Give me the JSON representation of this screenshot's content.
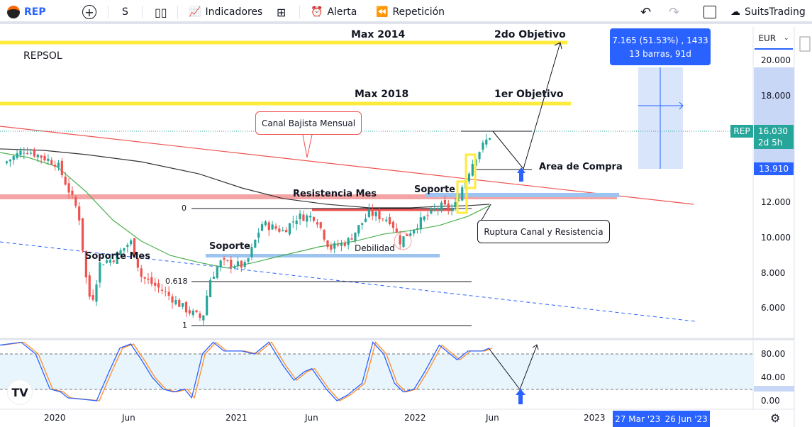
{
  "toolbar": {
    "symbol": "REP",
    "interval": "S",
    "indicators": "Indicadores",
    "alert": "Alerta",
    "replay": "Repetición",
    "account": "SuitsTrading"
  },
  "chart": {
    "title": "REPSOL",
    "currency": "EUR",
    "price_labels": [
      "20.000",
      "18.000",
      "12.000",
      "10.000",
      "8.000",
      "6.000"
    ],
    "osc_labels": [
      "80.00",
      "40.00",
      "0.00"
    ],
    "time_labels": [
      "2020",
      "Jun",
      "2021",
      "Jun",
      "2022",
      "Jun",
      "2023"
    ],
    "range_labels": [
      "27 Mar '23",
      "26 Jun '23"
    ],
    "last_symbol": "REP",
    "last_price": "16.030",
    "countdown": "2d 5h",
    "target_price": "13.910",
    "measure_line1": "7.165 (51.53%) , 1433",
    "measure_line2": "13 barras, 91d",
    "colors": {
      "up": "#26a69a",
      "down": "#ef5350",
      "yellow": "#ffeb3b",
      "accent": "#2962ff"
    }
  },
  "annotations": {
    "max2014": "Max 2014",
    "obj2": "2do Objetivo",
    "max2018": "Max 2018",
    "obj1": "1er Objetivo",
    "canal": "Canal Bajista Mensual",
    "resist": "Resistencia Mes",
    "soporte1": "Soporte",
    "soporte2": "Soporte",
    "soporte_mes": "Soporte Mes",
    "debilidad": "Debilidad",
    "area": "Area de Compra",
    "ruptura": "Ruptura Canal y Resistencia",
    "fib0": "0",
    "fib618": "0.618",
    "fib1": "1"
  },
  "chart_data": {
    "type": "candlestick",
    "price_path": [
      [
        2019.71,
        14.2
      ],
      [
        2019.83,
        15.0
      ],
      [
        2020.01,
        14.2
      ],
      [
        2020.07,
        12.8
      ],
      [
        2020.13,
        11.4
      ],
      [
        2020.17,
        7.8
      ],
      [
        2020.2,
        6.2
      ],
      [
        2020.25,
        8.6
      ],
      [
        2020.32,
        8.8
      ],
      [
        2020.42,
        9.8
      ],
      [
        2020.48,
        7.8
      ],
      [
        2020.6,
        7.0
      ],
      [
        2020.72,
        6.0
      ],
      [
        2020.82,
        5.4
      ],
      [
        2020.86,
        7.6
      ],
      [
        2020.92,
        8.6
      ],
      [
        2021.06,
        8.4
      ],
      [
        2021.15,
        10.8
      ],
      [
        2021.27,
        10.4
      ],
      [
        2021.35,
        11.2
      ],
      [
        2021.45,
        11.2
      ],
      [
        2021.53,
        9.4
      ],
      [
        2021.63,
        9.8
      ],
      [
        2021.75,
        11.4
      ],
      [
        2021.87,
        11.0
      ],
      [
        2021.92,
        9.8
      ],
      [
        2022.02,
        10.8
      ],
      [
        2022.14,
        11.8
      ],
      [
        2022.22,
        11.6
      ],
      [
        2022.28,
        13.2
      ],
      [
        2022.34,
        14.6
      ],
      [
        2022.44,
        16.03
      ]
    ],
    "ma_fast": [
      [
        2019.69,
        14.83
      ],
      [
        2019.85,
        14.54
      ],
      [
        2020.01,
        14.02
      ],
      [
        2020.17,
        12.62
      ],
      [
        2020.32,
        11.01
      ],
      [
        2020.48,
        9.81
      ],
      [
        2020.64,
        9.01
      ],
      [
        2020.8,
        8.61
      ],
      [
        2020.96,
        8.29
      ],
      [
        2021.11,
        8.61
      ],
      [
        2021.27,
        9.01
      ],
      [
        2021.47,
        9.49
      ],
      [
        2021.67,
        9.81
      ],
      [
        2021.83,
        10.21
      ],
      [
        2021.98,
        10.41
      ],
      [
        2022.14,
        10.7
      ],
      [
        2022.3,
        11.22
      ],
      [
        2022.42,
        11.82
      ]
    ],
    "ma_slow": [
      [
        2019.69,
        15.03
      ],
      [
        2019.93,
        14.95
      ],
      [
        2020.17,
        14.71
      ],
      [
        2020.48,
        14.3
      ],
      [
        2020.8,
        13.62
      ],
      [
        2021.04,
        12.82
      ],
      [
        2021.27,
        12.22
      ],
      [
        2021.51,
        11.9
      ],
      [
        2021.75,
        11.7
      ],
      [
        2021.98,
        11.7
      ],
      [
        2022.14,
        11.78
      ],
      [
        2022.3,
        11.82
      ],
      [
        2022.42,
        11.9
      ]
    ],
    "stoch_k": [
      [
        2019.69,
        95
      ],
      [
        2019.81,
        100
      ],
      [
        2019.89,
        80
      ],
      [
        2019.97,
        20
      ],
      [
        2020.03,
        15
      ],
      [
        2020.07,
        5
      ],
      [
        2020.17,
        2
      ],
      [
        2020.23,
        0
      ],
      [
        2020.3,
        50
      ],
      [
        2020.36,
        90
      ],
      [
        2020.42,
        97
      ],
      [
        2020.48,
        70
      ],
      [
        2020.54,
        40
      ],
      [
        2020.6,
        20
      ],
      [
        2020.66,
        15
      ],
      [
        2020.72,
        20
      ],
      [
        2020.76,
        5
      ],
      [
        2020.82,
        80
      ],
      [
        2020.88,
        100
      ],
      [
        2020.94,
        85
      ],
      [
        2021.04,
        85
      ],
      [
        2021.11,
        80
      ],
      [
        2021.19,
        100
      ],
      [
        2021.27,
        60
      ],
      [
        2021.33,
        35
      ],
      [
        2021.39,
        50
      ],
      [
        2021.43,
        55
      ],
      [
        2021.51,
        20
      ],
      [
        2021.57,
        0
      ],
      [
        2021.63,
        10
      ],
      [
        2021.71,
        30
      ],
      [
        2021.77,
        100
      ],
      [
        2021.83,
        80
      ],
      [
        2021.89,
        30
      ],
      [
        2021.94,
        15
      ],
      [
        2022.0,
        20
      ],
      [
        2022.06,
        50
      ],
      [
        2022.14,
        95
      ],
      [
        2022.2,
        80
      ],
      [
        2022.24,
        70
      ],
      [
        2022.3,
        85
      ],
      [
        2022.38,
        85
      ],
      [
        2022.42,
        90
      ]
    ],
    "ylim": [
      5,
      22
    ],
    "osc_levels": [
      20,
      80
    ]
  }
}
